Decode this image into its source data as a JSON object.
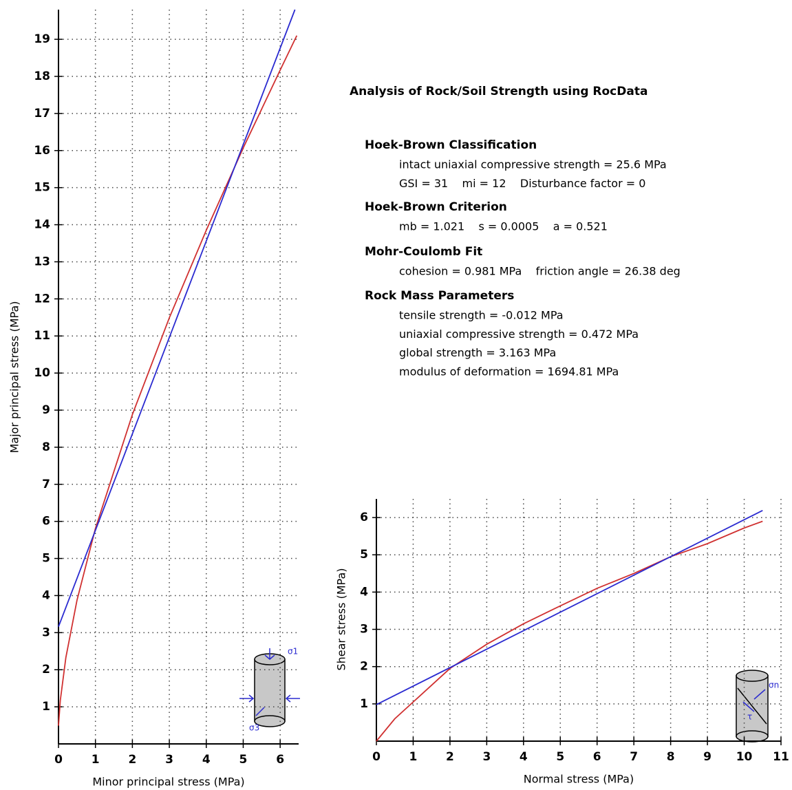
{
  "chart_data": [
    {
      "type": "line",
      "x_label": "Minor principal stress (MPa)",
      "y_label": "Major principal stress (MPa)",
      "xlim": [
        0,
        6.5
      ],
      "ylim": [
        0,
        19.8
      ],
      "xticks": [
        0,
        1,
        2,
        3,
        4,
        5,
        6
      ],
      "yticks": [
        1,
        2,
        3,
        4,
        5,
        6,
        7,
        8,
        9,
        10,
        11,
        12,
        13,
        14,
        15,
        16,
        17,
        18,
        19
      ],
      "grid": true,
      "icon_labels": [
        "σ1",
        "σ3"
      ],
      "series": [
        {
          "color": "#d03030",
          "x": [
            0,
            0.05,
            0.2,
            0.5,
            1,
            2,
            3,
            4,
            5,
            6,
            6.45
          ],
          "values": [
            0.49,
            1.18,
            2.33,
            3.87,
            5.81,
            8.88,
            11.49,
            13.85,
            16.07,
            18.17,
            19.1
          ]
        },
        {
          "color": "#2a2ad0",
          "x": [
            0,
            6.4
          ],
          "values": [
            3.16,
            19.8
          ]
        }
      ]
    },
    {
      "type": "line",
      "x_label": "Normal stress (MPa)",
      "y_label": "Shear stress (MPa)",
      "xlim": [
        0,
        11
      ],
      "ylim": [
        0,
        6.5
      ],
      "xticks": [
        0,
        1,
        2,
        3,
        4,
        5,
        6,
        7,
        8,
        9,
        10,
        11
      ],
      "yticks": [
        1,
        2,
        3,
        4,
        5,
        6
      ],
      "grid": true,
      "icon_labels": [
        "σn",
        "τ"
      ],
      "series": [
        {
          "color": "#d03030",
          "x": [
            0,
            0.5,
            1,
            2,
            3,
            4,
            5,
            6,
            7,
            8,
            9,
            10,
            10.5
          ],
          "values": [
            0,
            0.6,
            1.05,
            1.95,
            2.6,
            3.15,
            3.63,
            4.1,
            4.5,
            4.95,
            5.3,
            5.72,
            5.9
          ]
        },
        {
          "color": "#2a2ad0",
          "x": [
            0,
            10.5
          ],
          "values": [
            0.98,
            6.19
          ]
        }
      ]
    }
  ],
  "panel": {
    "title": "Analysis of Rock/Soil Strength using RocData",
    "sections": [
      {
        "heading": "Hoek-Brown Classification",
        "lines": [
          "intact uniaxial compressive strength = 25.6 MPa",
          "GSI = 31    mi = 12    Disturbance factor = 0"
        ]
      },
      {
        "heading": "Hoek-Brown Criterion",
        "lines": [
          "mb = 1.021    s = 0.0005    a = 0.521"
        ]
      },
      {
        "heading": "Mohr-Coulomb Fit",
        "lines": [
          "cohesion = 0.981 MPa    friction angle = 26.38 deg"
        ]
      },
      {
        "heading": "Rock Mass Parameters",
        "lines": [
          "tensile strength = -0.012 MPa",
          "uniaxial compressive strength = 0.472 MPa",
          "global strength = 3.163 MPa",
          "modulus of deformation = 1694.81 MPa"
        ]
      }
    ]
  }
}
